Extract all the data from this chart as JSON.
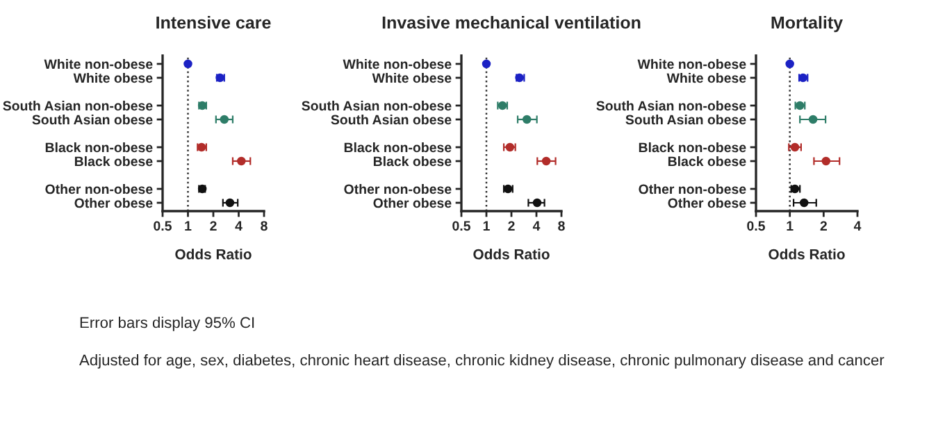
{
  "chart_data": [
    {
      "type": "scatter",
      "orientation": "horizontal",
      "title": "Intensive care",
      "xlabel": "Odds Ratio",
      "log": "x",
      "marker": "circle",
      "grid": false,
      "categories": [
        "White non-obese",
        "White obese",
        null,
        "South Asian non-obese",
        "South Asian obese",
        null,
        "Black non-obese",
        "Black obese",
        null,
        "Other non-obese",
        "Other obese"
      ],
      "values": [
        1.0,
        2.4,
        null,
        1.48,
        2.7,
        null,
        1.45,
        4.3,
        null,
        1.48,
        3.15
      ],
      "errors": [
        null,
        [
          2.2,
          2.7
        ],
        null,
        [
          1.35,
          1.65
        ],
        [
          2.15,
          3.4
        ],
        null,
        [
          1.3,
          1.65
        ],
        [
          3.4,
          5.5
        ],
        null,
        [
          1.35,
          1.6
        ],
        [
          2.6,
          3.9
        ]
      ],
      "colors": [
        "#1c22c4",
        "#1c22c4",
        null,
        "#2e7d68",
        "#2e7d68",
        null,
        "#b22d2a",
        "#b22d2a",
        null,
        "#111111",
        "#111111"
      ],
      "xlim": [
        0.5,
        8
      ],
      "xticks": [
        0.5,
        1,
        2,
        4,
        8
      ],
      "ref_lines": [
        {
          "axis": "x",
          "value": 1,
          "color": "#333333",
          "line_style": "dotted"
        }
      ]
    },
    {
      "type": "scatter",
      "orientation": "horizontal",
      "title": "Invasive mechanical ventilation",
      "xlabel": "Odds Ratio",
      "log": "x",
      "marker": "circle",
      "grid": false,
      "categories": [
        "White non-obese",
        "White obese",
        null,
        "South Asian non-obese",
        "South Asian obese",
        null,
        "Black non-obese",
        "Black obese",
        null,
        "Other non-obese",
        "Other obese"
      ],
      "values": [
        1.0,
        2.5,
        null,
        1.56,
        3.07,
        null,
        1.92,
        5.25,
        null,
        1.82,
        4.08
      ],
      "errors": [
        null,
        [
          2.3,
          2.85
        ],
        null,
        [
          1.37,
          1.78
        ],
        [
          2.38,
          4.05
        ],
        null,
        [
          1.62,
          2.23
        ],
        [
          4.1,
          6.8
        ],
        null,
        [
          1.62,
          2.07
        ],
        [
          3.2,
          5.0
        ]
      ],
      "colors": [
        "#1c22c4",
        "#1c22c4",
        null,
        "#2e7d68",
        "#2e7d68",
        null,
        "#b22d2a",
        "#b22d2a",
        null,
        "#111111",
        "#111111"
      ],
      "xlim": [
        0.5,
        8
      ],
      "xticks": [
        0.5,
        1,
        2,
        4,
        8
      ],
      "ref_lines": [
        {
          "axis": "x",
          "value": 1,
          "color": "#333333",
          "line_style": "dotted"
        }
      ]
    },
    {
      "type": "scatter",
      "orientation": "horizontal",
      "title": "Mortality",
      "xlabel": "Odds Ratio",
      "log": "x",
      "marker": "circle",
      "grid": false,
      "categories": [
        "White non-obese",
        "White obese",
        null,
        "South Asian non-obese",
        "South Asian obese",
        null,
        "Black non-obese",
        "Black obese",
        null,
        "Other non-obese",
        "Other obese"
      ],
      "values": [
        1.0,
        1.31,
        null,
        1.23,
        1.61,
        null,
        1.11,
        2.1,
        null,
        1.11,
        1.34
      ],
      "errors": [
        null,
        [
          1.21,
          1.44
        ],
        null,
        [
          1.12,
          1.36
        ],
        [
          1.23,
          2.08
        ],
        null,
        [
          0.98,
          1.26
        ],
        [
          1.64,
          2.77
        ],
        null,
        [
          1.03,
          1.23
        ],
        [
          1.08,
          1.72
        ]
      ],
      "colors": [
        "#1c22c4",
        "#1c22c4",
        null,
        "#2e7d68",
        "#2e7d68",
        null,
        "#b22d2a",
        "#b22d2a",
        null,
        "#111111",
        "#111111"
      ],
      "xlim": [
        0.5,
        4
      ],
      "xticks": [
        0.5,
        1,
        2,
        4
      ],
      "ref_lines": [
        {
          "axis": "x",
          "value": 1,
          "color": "#333333",
          "line_style": "dotted"
        }
      ],
      "annotations": [
        "Error bars display 95% CI",
        "Adjusted for age, sex, diabetes, chronic heart disease, chronic kidney disease, chronic pulmonary disease and cancer"
      ]
    }
  ]
}
